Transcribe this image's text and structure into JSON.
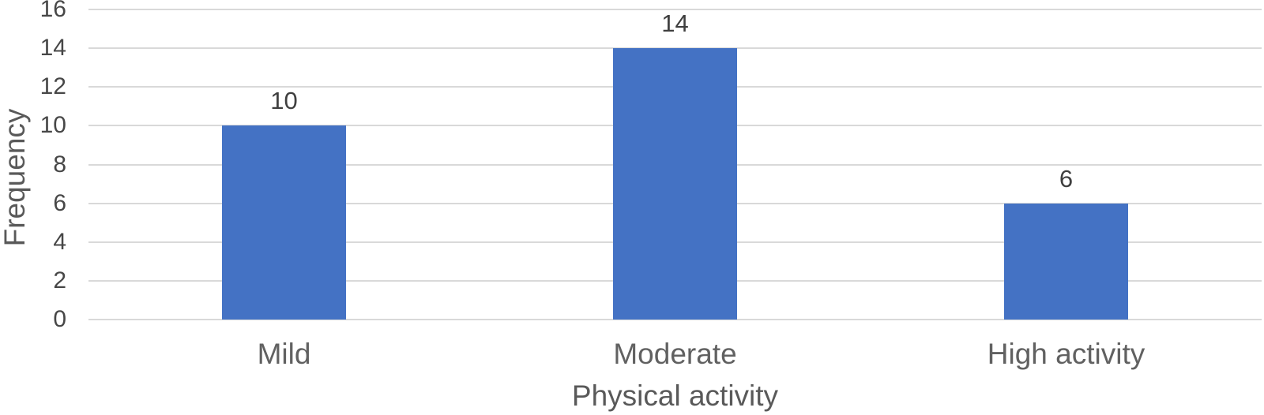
{
  "figure": {
    "background_color": "#ffffff"
  },
  "chart_data": {
    "type": "bar",
    "title": "",
    "categories": [
      "Mild",
      "Moderate",
      "High activity"
    ],
    "values": [
      10,
      14,
      6
    ],
    "data_labels_shown": [
      "10",
      "14",
      "6"
    ],
    "xlabel": "Physical activity",
    "ylabel": "Frequency",
    "ylim": [
      0,
      16
    ],
    "yticks": [
      0,
      2,
      4,
      6,
      8,
      10,
      12,
      14,
      16
    ],
    "grid": "horizontal",
    "legend": "none",
    "colors": {
      "bar": "#4472c4",
      "gridline": "#d9d9d9",
      "tick_label": "#474747",
      "data_label": "#3f3f3f",
      "category_label": "#616161",
      "axis_title": "#595959"
    }
  }
}
